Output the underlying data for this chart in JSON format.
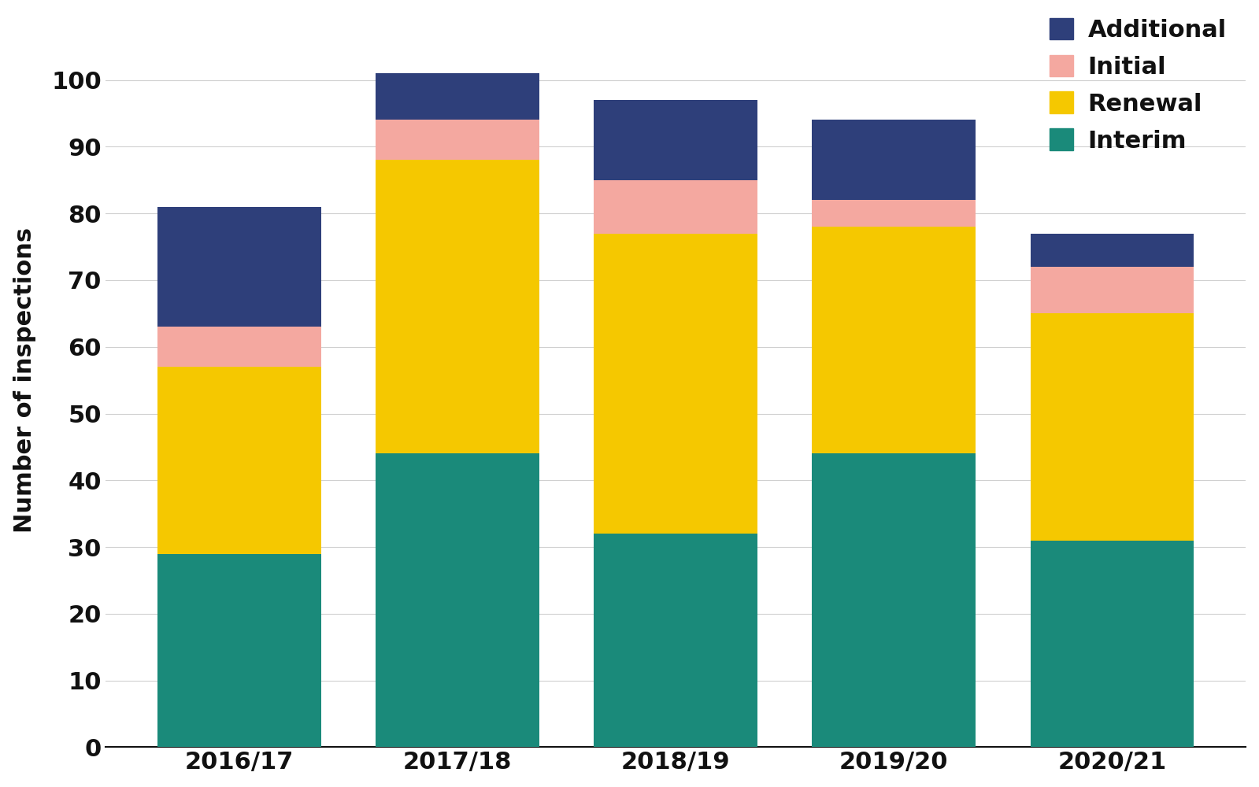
{
  "categories": [
    "2016/17",
    "2017/18",
    "2018/19",
    "2019/20",
    "2020/21"
  ],
  "interim": [
    29,
    44,
    32,
    44,
    31
  ],
  "renewal": [
    28,
    44,
    45,
    34,
    34
  ],
  "initial": [
    6,
    6,
    8,
    4,
    7
  ],
  "additional": [
    18,
    7,
    12,
    12,
    5
  ],
  "colors": {
    "interim": "#1a8a7a",
    "renewal": "#f5c800",
    "initial": "#f4a8a0",
    "additional": "#2e3f7a"
  },
  "ylabel": "Number of inspections",
  "ylim": [
    0,
    110
  ],
  "yticks": [
    0,
    10,
    20,
    30,
    40,
    50,
    60,
    70,
    80,
    90,
    100
  ],
  "legend_labels": [
    "Additional",
    "Initial",
    "Renewal",
    "Interim"
  ],
  "background_color": "#ffffff",
  "grid_color": "#d0d0d0",
  "bar_width": 0.75,
  "tick_fontsize": 22,
  "ylabel_fontsize": 22,
  "legend_fontsize": 22
}
